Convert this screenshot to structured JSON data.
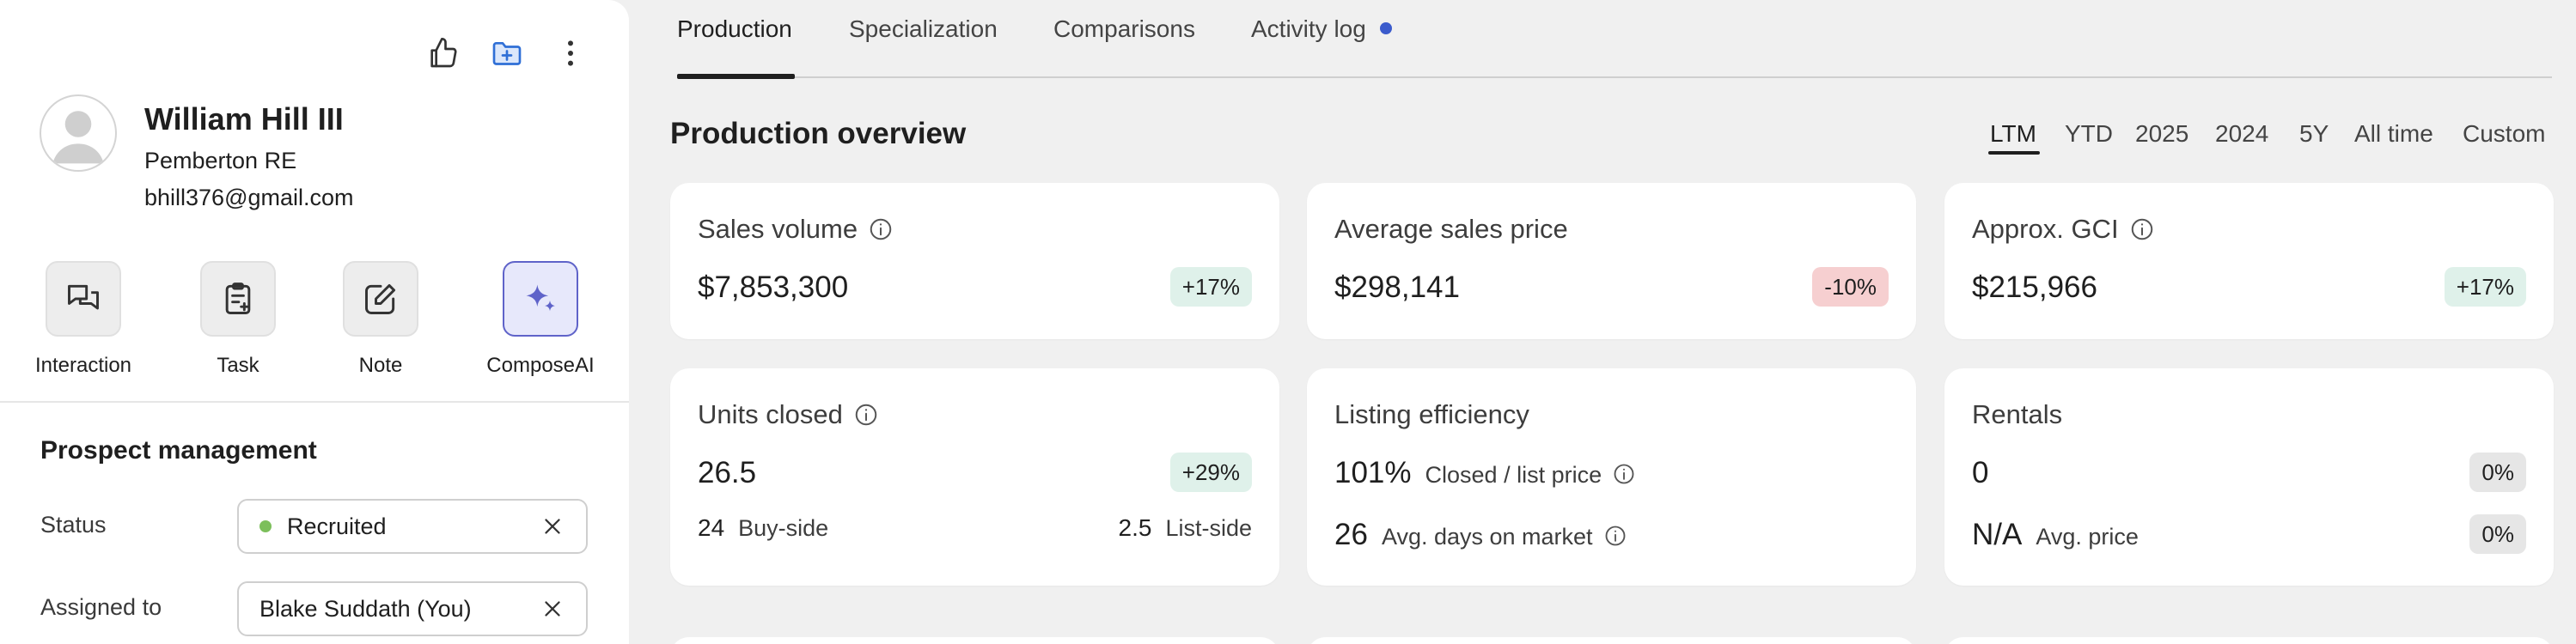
{
  "colors": {
    "accent_blue": "#2f6fd6",
    "badge_green_bg": "#dff1ea",
    "badge_red_bg": "#f6cfd0",
    "badge_gray_bg": "#e6e6e6",
    "status_green": "#7cbf5b",
    "compose_ai": "#5f63c9",
    "activity_dot": "#3b5bcc"
  },
  "header_icons": [
    "thumbs-up-icon",
    "folder-plus-icon",
    "more-vertical-icon"
  ],
  "profile": {
    "name": "William Hill III",
    "company": "Pemberton RE",
    "email": "bhill376@gmail.com"
  },
  "actions": [
    {
      "label": "Interaction",
      "icon": "interaction-icon"
    },
    {
      "label": "Task",
      "icon": "task-clipboard-icon"
    },
    {
      "label": "Note",
      "icon": "note-edit-icon"
    },
    {
      "label": "ComposeAI",
      "icon": "sparkle-icon"
    }
  ],
  "prospect": {
    "title": "Prospect management",
    "status_label": "Status",
    "status_value": "Recruited",
    "assigned_label": "Assigned to",
    "assigned_value": "Blake Suddath (You)"
  },
  "tabs": [
    {
      "label": "Production",
      "active": true
    },
    {
      "label": "Specialization"
    },
    {
      "label": "Comparisons"
    },
    {
      "label": "Activity log",
      "dot": true
    }
  ],
  "overview": {
    "title": "Production overview",
    "periods": [
      "LTM",
      "YTD",
      "2025",
      "2024",
      "5Y",
      "All time",
      "Custom"
    ],
    "active_period": "LTM"
  },
  "cards": {
    "sales_volume": {
      "title": "Sales volume",
      "value": "$7,853,300",
      "badge": "+17%"
    },
    "avg_sales_price": {
      "title": "Average sales price",
      "value": "$298,141",
      "badge": "-10%"
    },
    "approx_gci": {
      "title": "Approx. GCI",
      "value": "$215,966",
      "badge": "+17%"
    },
    "units_closed": {
      "title": "Units closed",
      "value": "26.5",
      "badge": "+29%",
      "buy_num": "24",
      "buy_label": "Buy-side",
      "list_num": "2.5",
      "list_label": "List-side"
    },
    "listing_efficiency": {
      "title": "Listing efficiency",
      "ratio_value": "101%",
      "ratio_label": "Closed / list price",
      "days_value": "26",
      "days_label": "Avg. days on market"
    },
    "rentals": {
      "title": "Rentals",
      "value": "0",
      "badge": "0%",
      "price_value": "N/A",
      "price_label": "Avg. price",
      "price_badge": "0%"
    }
  }
}
